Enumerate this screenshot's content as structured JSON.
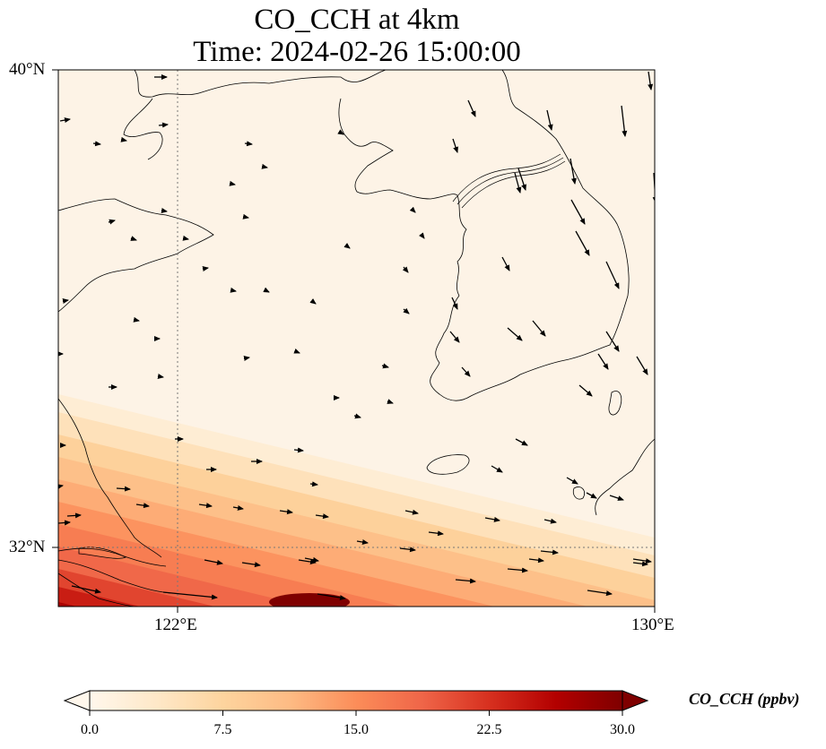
{
  "title": {
    "line1": "CO_CCH at 4km",
    "line2": "Time: 2024-02-26 15:00:00"
  },
  "map": {
    "lat_range": [
      31.0,
      40.0
    ],
    "lon_range": [
      120.0,
      130.0
    ],
    "lat_ticks": [
      {
        "value": 40,
        "label": "40°N"
      },
      {
        "value": 32,
        "label": "32°N"
      }
    ],
    "lon_ticks": [
      {
        "value": 122,
        "label": "122°E"
      },
      {
        "value": 130,
        "label": "130°E"
      }
    ],
    "gridlines": "dotted",
    "coastlines": true,
    "wind_vectors": true
  },
  "colorbar": {
    "title": "CO_CCH (ppbv)",
    "min": 0.0,
    "max": 30.0,
    "ticks": [
      "0.0",
      "7.5",
      "15.0",
      "22.5",
      "30.0"
    ],
    "colormap": "OrRd",
    "colors": [
      "#fff7ec",
      "#fee8c8",
      "#fdd49e",
      "#fdbb84",
      "#fc8d59",
      "#ef6548",
      "#d7301f",
      "#b30000",
      "#7f0000"
    ],
    "extend": "both"
  },
  "field": {
    "background_level": 1.2,
    "plume_region": "southwest",
    "plume_max": 30.0
  }
}
